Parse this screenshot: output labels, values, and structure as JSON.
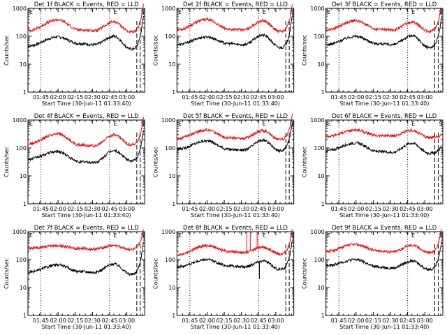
{
  "figure": {
    "note": "3x3 grid of RHESSI detector count-rate panels"
  },
  "chart_data": [
    {
      "type": "line",
      "title": "Det 1f BLACK = Events, RED = LLD",
      "xlabel": "Start Time (30-Jun-11 01:33:40)",
      "ylabel": "Counts/sec",
      "yscale": "log",
      "ylim": [
        1,
        1000
      ],
      "yticks": [
        "1",
        "10",
        "100",
        "1000"
      ],
      "xlim_minutes": [
        0,
        102
      ],
      "xtick_labels": [
        "01:45",
        "02:00",
        "02:15",
        "02:30",
        "02:45",
        "03:00"
      ],
      "xtick_minutes": [
        11.3,
        26.3,
        41.3,
        56.3,
        71.3,
        86.3
      ],
      "dotted_lines_minutes": [
        11.3,
        71.3
      ],
      "dashed_lines_minutes": [
        95,
        98
      ],
      "markers": [
        {
          "label": "E",
          "minute": 0.5
        },
        {
          "label": "E",
          "minute": 74
        },
        {
          "label": "S",
          "minute": 98
        }
      ],
      "series": [
        {
          "name": "Events",
          "color": "#000000",
          "base": [
            45,
            95,
            55,
            50,
            100,
            35,
            600
          ]
        },
        {
          "name": "LLD",
          "color": "#ff0000",
          "base": [
            160,
            390,
            170,
            160,
            330,
            140,
            1500
          ]
        }
      ]
    },
    {
      "type": "line",
      "title": "Det 2f BLACK = Events, RED = LLD",
      "xlabel": "Start Time (30-Jun-11 01:33:40)",
      "ylabel": "Counts/sec",
      "yscale": "log",
      "ylim": [
        1,
        1000
      ],
      "yticks": [
        "1",
        "10",
        "100",
        "1000"
      ],
      "xlim_minutes": [
        0,
        102
      ],
      "xtick_labels": [
        "01:45",
        "02:00",
        "02:15",
        "02:30",
        "02:45",
        "03:00"
      ],
      "xtick_minutes": [
        11.3,
        26.3,
        41.3,
        56.3,
        71.3,
        86.3
      ],
      "dotted_lines_minutes": [
        11.3,
        71.3
      ],
      "dashed_lines_minutes": [
        95,
        98
      ],
      "markers": [
        {
          "label": "E",
          "minute": 0.5
        },
        {
          "label": "E",
          "minute": 74
        },
        {
          "label": "S",
          "minute": 98
        }
      ],
      "series": [
        {
          "name": "Events",
          "color": "#000000",
          "base": [
            50,
            95,
            55,
            50,
            110,
            40,
            700
          ]
        },
        {
          "name": "LLD",
          "color": "#ff0000",
          "base": [
            170,
            400,
            180,
            170,
            360,
            150,
            1600
          ]
        }
      ]
    },
    {
      "type": "line",
      "title": "Det 3f BLACK = Events, RED = LLD",
      "xlabel": "Start Time (30-Jun-11 01:33:40)",
      "ylabel": "Counts/sec",
      "yscale": "log",
      "ylim": [
        1,
        1000
      ],
      "yticks": [
        "1",
        "10",
        "100",
        "1000"
      ],
      "xlim_minutes": [
        0,
        102
      ],
      "xtick_labels": [
        "01:45",
        "02:00",
        "02:15",
        "02:30",
        "02:45",
        "03:00"
      ],
      "xtick_minutes": [
        11.3,
        26.3,
        41.3,
        56.3,
        71.3,
        86.3
      ],
      "dotted_lines_minutes": [
        11.3,
        71.3
      ],
      "dashed_lines_minutes": [
        95,
        98
      ],
      "markers": [
        {
          "label": "E",
          "minute": 0.5
        },
        {
          "label": "E",
          "minute": 74
        },
        {
          "label": "S",
          "minute": 98
        }
      ],
      "series": [
        {
          "name": "Events",
          "color": "#000000",
          "base": [
            50,
            100,
            55,
            50,
            105,
            40,
            500
          ]
        },
        {
          "name": "LLD",
          "color": "#ff0000",
          "base": [
            170,
            360,
            180,
            170,
            320,
            150,
            1300
          ]
        }
      ]
    },
    {
      "type": "line",
      "title": "Det 4f BLACK = Events, RED = LLD",
      "xlabel": "Start Time (30-Jun-11 01:33:40)",
      "ylabel": "Counts/sec",
      "yscale": "log",
      "ylim": [
        1,
        1000
      ],
      "yticks": [
        "1",
        "10",
        "100",
        "1000"
      ],
      "xlim_minutes": [
        0,
        102
      ],
      "xtick_labels": [
        "01:45",
        "02:00",
        "02:15",
        "02:30",
        "02:45",
        "03:00"
      ],
      "xtick_minutes": [
        11.3,
        26.3,
        41.3,
        56.3,
        71.3,
        86.3
      ],
      "dotted_lines_minutes": [
        11.3,
        71.3
      ],
      "dashed_lines_minutes": [
        95,
        98
      ],
      "markers": [
        {
          "label": "E",
          "minute": 0.5
        },
        {
          "label": "E",
          "minute": 74
        },
        {
          "label": "S",
          "minute": 98
        }
      ],
      "series": [
        {
          "name": "Events",
          "color": "#000000",
          "base": [
            40,
            75,
            32,
            30,
            80,
            35,
            500
          ]
        },
        {
          "name": "LLD",
          "color": "#ff0000",
          "base": [
            140,
            320,
            130,
            120,
            300,
            130,
            1400
          ]
        }
      ]
    },
    {
      "type": "line",
      "title": "Det 5f BLACK = Events, RED = LLD",
      "xlabel": "Start Time (30-Jun-11 01:33:40)",
      "ylabel": "Counts/sec",
      "yscale": "log",
      "ylim": [
        1,
        1000
      ],
      "yticks": [
        "1",
        "10",
        "100",
        "1000"
      ],
      "xlim_minutes": [
        0,
        102
      ],
      "xtick_labels": [
        "01:45",
        "02:00",
        "02:15",
        "02:30",
        "02:45",
        "03:00"
      ],
      "xtick_minutes": [
        11.3,
        26.3,
        41.3,
        56.3,
        71.3,
        86.3
      ],
      "dotted_lines_minutes": [
        11.3,
        71.3
      ],
      "dashed_lines_minutes": [
        95,
        98
      ],
      "markers": [
        {
          "label": "E",
          "minute": 0.5
        },
        {
          "label": "E",
          "minute": 74
        },
        {
          "label": "S",
          "minute": 98
        }
      ],
      "series": [
        {
          "name": "Events",
          "color": "#000000",
          "base": [
            90,
            180,
            90,
            85,
            190,
            80,
            1000
          ]
        },
        {
          "name": "LLD",
          "color": "#ff0000",
          "base": [
            220,
            440,
            230,
            220,
            420,
            200,
            2000
          ]
        }
      ]
    },
    {
      "type": "line",
      "title": "Det 6f BLACK = Events, RED = LLD",
      "xlabel": "Start Time (30-Jun-11 01:33:40)",
      "ylabel": "Counts/sec",
      "yscale": "log",
      "ylim": [
        1,
        1000
      ],
      "yticks": [
        "1",
        "10",
        "100",
        "1000"
      ],
      "xlim_minutes": [
        0,
        102
      ],
      "xtick_labels": [
        "01:45",
        "02:00",
        "02:15",
        "02:30",
        "02:45",
        "03:00"
      ],
      "xtick_minutes": [
        11.3,
        26.3,
        41.3,
        56.3,
        71.3,
        86.3
      ],
      "dotted_lines_minutes": [
        11.3,
        71.3
      ],
      "dashed_lines_minutes": [
        95,
        98
      ],
      "markers": [
        {
          "label": "E",
          "minute": 0.5
        },
        {
          "label": "E",
          "minute": 74
        },
        {
          "label": "S",
          "minute": 98
        }
      ],
      "series": [
        {
          "name": "Events",
          "color": "#000000",
          "base": [
            80,
            150,
            75,
            70,
            150,
            65,
            120
          ]
        },
        {
          "name": "LLD",
          "color": "#ff0000",
          "base": [
            260,
            440,
            280,
            270,
            420,
            240,
            300
          ]
        }
      ]
    },
    {
      "type": "line",
      "title": "Det 7f BLACK = Events, RED = LLD",
      "xlabel": "Start Time (30-Jun-11 01:33:40)",
      "ylabel": "Counts/sec",
      "yscale": "log",
      "ylim": [
        1,
        1000
      ],
      "yticks": [
        "1",
        "10",
        "100",
        "1000"
      ],
      "xlim_minutes": [
        0,
        102
      ],
      "xtick_labels": [
        "01:45",
        "02:00",
        "02:15",
        "02:30",
        "02:45",
        "03:00"
      ],
      "xtick_minutes": [
        11.3,
        26.3,
        41.3,
        56.3,
        71.3,
        86.3
      ],
      "dotted_lines_minutes": [
        11.3,
        71.3
      ],
      "dashed_lines_minutes": [
        95,
        98
      ],
      "markers": [
        {
          "label": "E",
          "minute": 0.5
        },
        {
          "label": "E",
          "minute": 74
        },
        {
          "label": "S",
          "minute": 98
        }
      ],
      "series": [
        {
          "name": "Events",
          "color": "#000000",
          "base": [
            35,
            65,
            38,
            35,
            70,
            30,
            500
          ]
        },
        {
          "name": "LLD",
          "color": "#ff0000",
          "base": [
            250,
            320,
            250,
            240,
            320,
            230,
            1300
          ]
        }
      ]
    },
    {
      "type": "line",
      "title": "Det 8f BLACK = Events, RED = LLD",
      "xlabel": "Start Time (30-Jun-11 01:33:40)",
      "ylabel": "Counts/sec",
      "yscale": "log",
      "ylim": [
        1,
        1000
      ],
      "yticks": [
        "1",
        "10",
        "100",
        "1000"
      ],
      "xlim_minutes": [
        0,
        102
      ],
      "xtick_labels": [
        "01:45",
        "02:00",
        "02:15",
        "02:30",
        "02:45",
        "03:00"
      ],
      "xtick_minutes": [
        11.3,
        26.3,
        41.3,
        56.3,
        71.3,
        86.3
      ],
      "dotted_lines_minutes": [
        11.3,
        71.3
      ],
      "dashed_lines_minutes": [
        95,
        98
      ],
      "markers": [
        {
          "label": "E",
          "minute": 0.5
        },
        {
          "label": "E",
          "minute": 74
        },
        {
          "label": "S",
          "minute": 98
        }
      ],
      "series": [
        {
          "name": "Events",
          "color": "#000000",
          "base": [
            55,
            100,
            60,
            55,
            90,
            45,
            600
          ]
        },
        {
          "name": "LLD",
          "color": "#ff0000",
          "base": [
            150,
            320,
            200,
            180,
            280,
            160,
            1500
          ]
        }
      ],
      "spikes": [
        {
          "minute": 61,
          "lld_to": 1000
        },
        {
          "minute": 64,
          "lld_to": 1000
        },
        {
          "minute": 70,
          "lld_to": 1000
        },
        {
          "minute": 72,
          "events_to": 20
        }
      ]
    },
    {
      "type": "line",
      "title": "Det 9f BLACK = Events, RED = LLD",
      "xlabel": "Start Time (30-Jun-11 01:33:40)",
      "ylabel": "Counts/sec",
      "yscale": "log",
      "ylim": [
        1,
        1000
      ],
      "yticks": [
        "1",
        "10",
        "100",
        "1000"
      ],
      "xlim_minutes": [
        0,
        102
      ],
      "xtick_labels": [
        "01:45",
        "02:00",
        "02:15",
        "02:30",
        "02:45",
        "03:00"
      ],
      "xtick_minutes": [
        11.3,
        26.3,
        41.3,
        56.3,
        71.3,
        86.3
      ],
      "dotted_lines_minutes": [
        11.3,
        71.3
      ],
      "dashed_lines_minutes": [
        95,
        98
      ],
      "markers": [
        {
          "label": "E",
          "minute": 0.5
        },
        {
          "label": "E",
          "minute": 74
        },
        {
          "label": "S",
          "minute": 98
        }
      ],
      "series": [
        {
          "name": "Events",
          "color": "#000000",
          "base": [
            60,
            100,
            55,
            50,
            90,
            45,
            500
          ]
        },
        {
          "name": "LLD",
          "color": "#ff0000",
          "base": [
            200,
            350,
            210,
            190,
            330,
            180,
            1300
          ]
        }
      ]
    }
  ]
}
